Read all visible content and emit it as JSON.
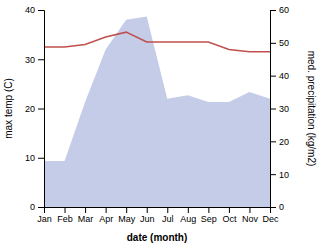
{
  "chart_data": {
    "type": "line",
    "categories": [
      "Jan",
      "Feb",
      "Mar",
      "Apr",
      "May",
      "Jun",
      "Jul",
      "Aug",
      "Sep",
      "Oct",
      "Nov",
      "Dec"
    ],
    "x_label": "date (month)",
    "y_label": "max temp (C)",
    "y2_label": "med. precipitation (kg/m2)",
    "ylim": [
      0,
      40
    ],
    "yticks": [
      0,
      10,
      20,
      30,
      40
    ],
    "y2lim": [
      0,
      60
    ],
    "y2ticks": [
      0,
      10,
      20,
      30,
      40,
      50,
      60
    ],
    "series": [
      {
        "type": "area",
        "axis": "y2",
        "color": "#c5cce8",
        "values": [
          14,
          14,
          32,
          48,
          57,
          58,
          33,
          34,
          32,
          32,
          35,
          33
        ]
      },
      {
        "type": "line",
        "color": "#c0504d",
        "values": [
          32.5,
          32.5,
          33.0,
          34.5,
          35.5,
          33.5,
          33.5,
          33.5,
          33.5,
          32.0,
          31.5,
          31.5
        ]
      }
    ]
  }
}
